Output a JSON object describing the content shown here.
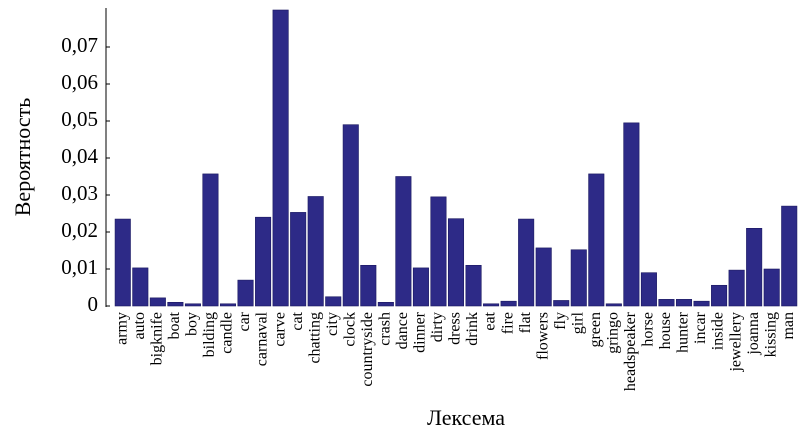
{
  "chart_data": {
    "type": "bar",
    "x_label": "Лексема",
    "y_label": "Вероятность",
    "categories": [
      "army",
      "auto",
      "bigknife",
      "boat",
      "boy",
      "bilding",
      "candle",
      "car",
      "carnaval",
      "carve",
      "cat",
      "chatting",
      "city",
      "clock",
      "countryside",
      "crash",
      "dance",
      "dinner",
      "dirty",
      "dress",
      "drink",
      "eat",
      "fire",
      "flat",
      "flowers",
      "fly",
      "girl",
      "green",
      "gringo",
      "headspeaker",
      "horse",
      "house",
      "hunter",
      "incar",
      "inside",
      "jewellery",
      "joanna",
      "kissing",
      "man"
    ],
    "values": [
      0.0235,
      0.0103,
      0.0022,
      0.001,
      0.0006,
      0.0357,
      0.0006,
      0.007,
      0.024,
      0.08,
      0.0253,
      0.0296,
      0.0025,
      0.049,
      0.011,
      0.001,
      0.035,
      0.0103,
      0.0295,
      0.0236,
      0.011,
      0.0006,
      0.0013,
      0.0235,
      0.0157,
      0.0015,
      0.0152,
      0.0357,
      0.0006,
      0.0495,
      0.009,
      0.0018,
      0.0018,
      0.0013,
      0.0056,
      0.0097,
      0.021,
      0.01,
      0.027
    ],
    "color": "#2d2a87",
    "ylim": [
      0,
      0.08
    ],
    "yticks": [
      0,
      {
        "value": 0.01,
        "label": "0,01"
      },
      {
        "value": 0.02,
        "label": "0,02"
      },
      {
        "value": 0.03,
        "label": "0,03"
      },
      {
        "value": 0.04,
        "label": "0,04"
      },
      {
        "value": 0.05,
        "label": "0,05"
      },
      {
        "value": 0.06,
        "label": "0,06"
      },
      {
        "value": 0.07,
        "label": "0,07"
      }
    ],
    "grid": false
  }
}
